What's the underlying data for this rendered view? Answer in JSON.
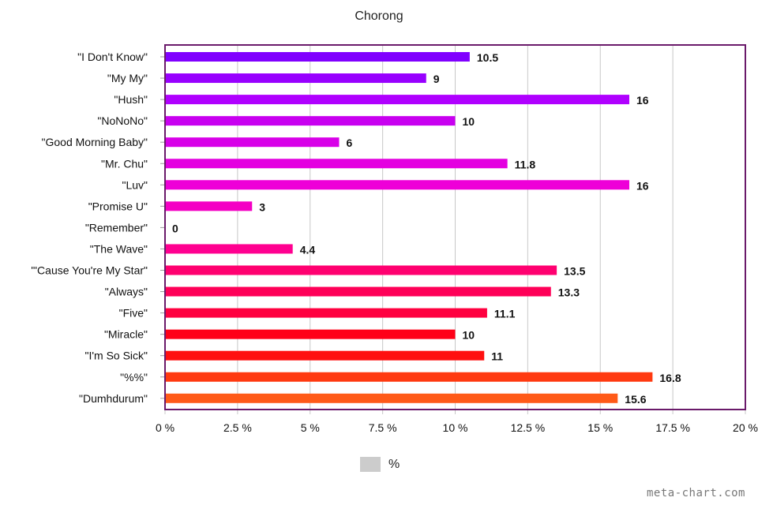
{
  "chart_data": {
    "type": "bar",
    "orientation": "horizontal",
    "title": "Chorong",
    "categories": [
      "\"I Don't Know\"",
      "\"My My\"",
      "\"Hush\"",
      "\"NoNoNo\"",
      "\"Good Morning Baby\"",
      "\"Mr. Chu\"",
      "\"Luv\"",
      "\"Promise U\"",
      "\"Remember\"",
      "\"The Wave\"",
      "\"'Cause You're My Star\"",
      "\"Always\"",
      "\"Five\"",
      "\"Miracle\"",
      "\"I'm So Sick\"",
      "\"%%\"",
      "\"Dumhdurum\""
    ],
    "values": [
      10.5,
      9,
      16,
      10,
      6,
      11.8,
      16,
      3,
      0,
      4.4,
      13.5,
      13.3,
      11.1,
      10,
      11,
      16.8,
      15.6
    ],
    "value_labels": [
      "10.5",
      "9",
      "16",
      "10",
      "6",
      "11.8",
      "16",
      "3",
      "0",
      "4.4",
      "13.5",
      "13.3",
      "11.1",
      "10",
      "11",
      "16.8",
      "15.6"
    ],
    "bar_colors": [
      "#8000ff",
      "#9800ff",
      "#b000ff",
      "#c800f0",
      "#d800e8",
      "#e400e0",
      "#ee00d8",
      "#f400c4",
      "#f800ac",
      "#ff0090",
      "#ff0070",
      "#ff0058",
      "#ff0040",
      "#ff0018",
      "#ff1010",
      "#ff3a10",
      "#ff5a18"
    ],
    "xlim": [
      0,
      20
    ],
    "xticks": [
      "0 %",
      "2.5 %",
      "5 %",
      "7.5 %",
      "10 %",
      "12.5 %",
      "15 %",
      "17.5 %",
      "20 %"
    ],
    "grid": true,
    "frame_color": "#6a1a6a",
    "grid_color": "#c8c8c8",
    "legend": {
      "label": "%",
      "color": "#cccccc",
      "position": "bottom-center"
    }
  },
  "watermark": "meta-chart.com"
}
